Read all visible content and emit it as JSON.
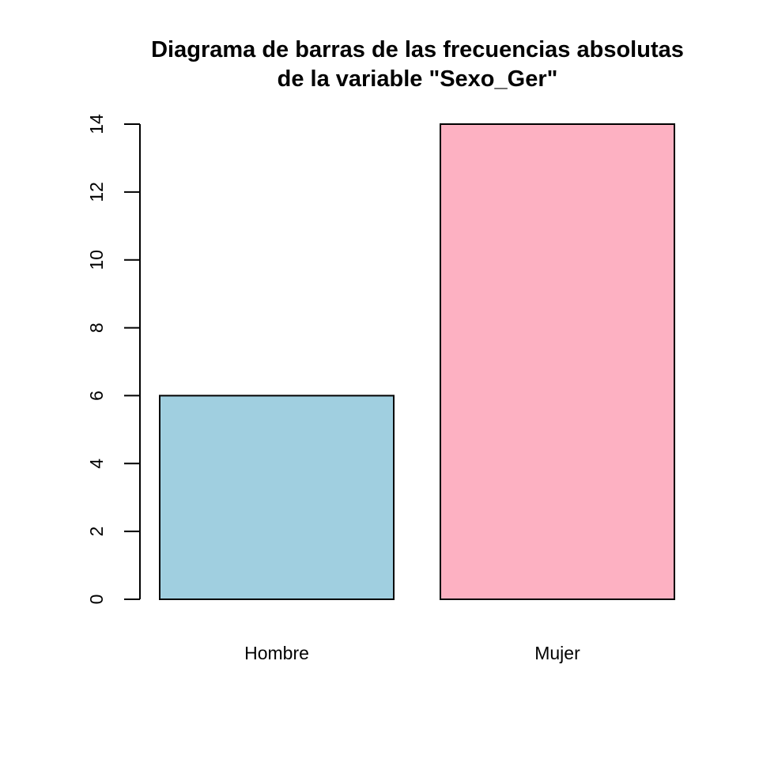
{
  "chart_data": {
    "type": "bar",
    "title": "Diagrama de barras de las frecuencias absolutas",
    "subtitle": "de la variable \"Sexo_Ger\"",
    "xlabel": "",
    "ylabel": "",
    "categories": [
      "Hombre",
      "Mujer"
    ],
    "values": [
      6,
      14
    ],
    "colors": [
      "#a0cfe0",
      "#fdb1c2"
    ],
    "ylim": [
      0,
      14
    ],
    "yticks": [
      0,
      2,
      4,
      6,
      8,
      10,
      12,
      14
    ],
    "grid": false,
    "legend": "none"
  }
}
